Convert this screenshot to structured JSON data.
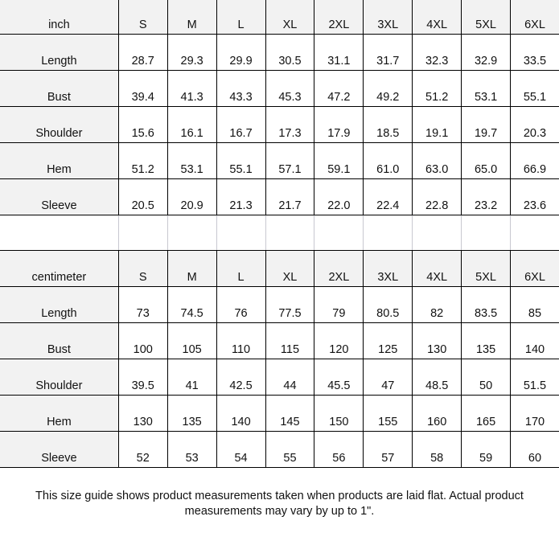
{
  "sizes": [
    "S",
    "M",
    "L",
    "XL",
    "2XL",
    "3XL",
    "4XL",
    "5XL",
    "6XL"
  ],
  "tables": [
    {
      "unit": "inch",
      "rows": [
        {
          "label": "Length",
          "values": [
            "28.7",
            "29.3",
            "29.9",
            "30.5",
            "31.1",
            "31.7",
            "32.3",
            "32.9",
            "33.5"
          ]
        },
        {
          "label": "Bust",
          "values": [
            "39.4",
            "41.3",
            "43.3",
            "45.3",
            "47.2",
            "49.2",
            "51.2",
            "53.1",
            "55.1"
          ]
        },
        {
          "label": "Shoulder",
          "values": [
            "15.6",
            "16.1",
            "16.7",
            "17.3",
            "17.9",
            "18.5",
            "19.1",
            "19.7",
            "20.3"
          ]
        },
        {
          "label": "Hem",
          "values": [
            "51.2",
            "53.1",
            "55.1",
            "57.1",
            "59.1",
            "61.0",
            "63.0",
            "65.0",
            "66.9"
          ]
        },
        {
          "label": "Sleeve",
          "values": [
            "20.5",
            "20.9",
            "21.3",
            "21.7",
            "22.0",
            "22.4",
            "22.8",
            "23.2",
            "23.6"
          ]
        }
      ]
    },
    {
      "unit": "centimeter",
      "rows": [
        {
          "label": "Length",
          "values": [
            "73",
            "74.5",
            "76",
            "77.5",
            "79",
            "80.5",
            "82",
            "83.5",
            "85"
          ]
        },
        {
          "label": "Bust",
          "values": [
            "100",
            "105",
            "110",
            "115",
            "120",
            "125",
            "130",
            "135",
            "140"
          ]
        },
        {
          "label": "Shoulder",
          "values": [
            "39.5",
            "41",
            "42.5",
            "44",
            "45.5",
            "47",
            "48.5",
            "50",
            "51.5"
          ]
        },
        {
          "label": "Hem",
          "values": [
            "130",
            "135",
            "140",
            "145",
            "150",
            "155",
            "160",
            "165",
            "170"
          ]
        },
        {
          "label": "Sleeve",
          "values": [
            "52",
            "53",
            "54",
            "55",
            "56",
            "57",
            "58",
            "59",
            "60"
          ]
        }
      ]
    }
  ],
  "note": "This size guide shows product measurements taken when products are laid flat. Actual product measurements may vary by up to 1\"."
}
